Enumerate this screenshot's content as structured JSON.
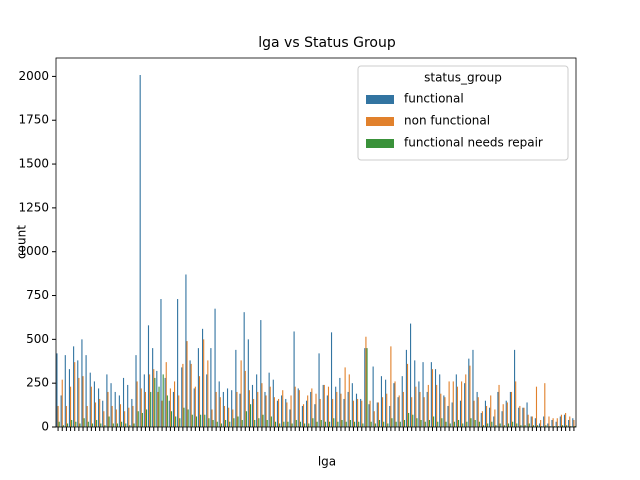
{
  "chart_data": {
    "type": "grouped_bar",
    "title": "lga vs Status Group",
    "xlabel": "lga",
    "ylabel": "count",
    "legend_title": "status_group",
    "legend": "upper right",
    "categories": [
      null,
      null,
      null,
      null,
      null,
      null,
      null,
      null,
      null,
      null,
      null,
      null,
      null,
      null,
      null,
      null,
      null,
      null,
      null,
      null,
      null,
      null,
      null,
      null,
      null,
      null,
      null,
      null,
      null,
      null,
      null,
      null,
      null,
      null,
      null,
      null,
      null,
      null,
      null,
      null,
      null,
      null,
      null,
      null,
      null,
      null,
      null,
      null,
      null,
      null,
      null,
      null,
      null,
      null,
      null,
      null,
      null,
      null,
      null,
      null,
      null,
      null,
      null,
      null,
      null,
      null,
      null,
      null,
      null,
      null,
      null,
      null,
      null,
      null,
      null,
      null,
      null,
      null,
      null,
      null,
      null,
      null,
      null,
      null,
      null,
      null,
      null,
      null,
      null,
      null,
      null,
      null,
      null,
      null,
      null,
      null,
      null,
      null,
      null,
      null,
      null,
      null,
      null,
      null,
      null,
      null,
      null,
      null,
      null,
      null,
      null,
      null,
      null,
      null,
      null,
      null,
      null,
      null,
      null,
      null,
      null,
      null,
      null,
      null,
      null
    ],
    "series": [
      {
        "name": "functional",
        "color": "#3274a1",
        "values": [
          420,
          180,
          410,
          330,
          460,
          380,
          500,
          410,
          310,
          260,
          220,
          150,
          300,
          250,
          200,
          180,
          280,
          240,
          160,
          410,
          2008,
          300,
          580,
          450,
          320,
          730,
          280,
          150,
          200,
          730,
          340,
          870,
          380,
          220,
          450,
          560,
          300,
          450,
          675,
          260,
          200,
          220,
          210,
          440,
          190,
          655,
          500,
          240,
          300,
          610,
          200,
          310,
          270,
          150,
          180,
          160,
          100,
          545,
          220,
          120,
          150,
          200,
          130,
          420,
          240,
          180,
          540,
          230,
          280,
          160,
          200,
          250,
          190,
          160,
          450,
          130,
          345,
          140,
          290,
          270,
          120,
          250,
          170,
          290,
          440,
          590,
          380,
          260,
          370,
          200,
          370,
          330,
          300,
          180,
          120,
          140,
          300,
          150,
          250,
          390,
          440,
          200,
          80,
          150,
          110,
          60,
          200,
          90,
          150,
          200,
          440,
          110,
          110,
          140,
          60,
          50,
          20,
          60,
          20,
          40,
          30,
          60,
          70,
          40,
          50
        ]
      },
      {
        "name": "non functional",
        "color": "#e1812c",
        "values": [
          120,
          270,
          120,
          230,
          370,
          280,
          290,
          120,
          230,
          140,
          160,
          90,
          200,
          120,
          100,
          130,
          90,
          110,
          120,
          260,
          220,
          200,
          300,
          330,
          200,
          150,
          370,
          220,
          260,
          180,
          360,
          490,
          360,
          230,
          290,
          500,
          380,
          100,
          200,
          170,
          120,
          110,
          100,
          200,
          380,
          320,
          210,
          160,
          200,
          250,
          180,
          230,
          170,
          160,
          210,
          140,
          180,
          230,
          210,
          130,
          180,
          220,
          190,
          160,
          240,
          230,
          160,
          200,
          190,
          340,
          300,
          150,
          160,
          150,
          515,
          150,
          90,
          140,
          170,
          190,
          460,
          260,
          180,
          200,
          360,
          170,
          230,
          200,
          170,
          240,
          330,
          240,
          190,
          170,
          260,
          260,
          230,
          260,
          300,
          350,
          150,
          170,
          90,
          120,
          180,
          100,
          240,
          130,
          140,
          200,
          260,
          120,
          110,
          70,
          60,
          230,
          40,
          250,
          60,
          50,
          50,
          70,
          80,
          60,
          40
        ]
      },
      {
        "name": "functional needs repair",
        "color": "#3a923a",
        "values": [
          30,
          10,
          20,
          40,
          30,
          20,
          50,
          30,
          20,
          40,
          20,
          10,
          60,
          20,
          20,
          30,
          20,
          10,
          20,
          90,
          80,
          100,
          200,
          280,
          230,
          300,
          180,
          90,
          60,
          50,
          110,
          100,
          70,
          60,
          70,
          70,
          50,
          40,
          30,
          20,
          40,
          30,
          50,
          60,
          40,
          90,
          130,
          40,
          50,
          70,
          40,
          60,
          30,
          20,
          30,
          30,
          20,
          40,
          30,
          20,
          20,
          50,
          30,
          40,
          30,
          30,
          50,
          30,
          40,
          30,
          40,
          30,
          30,
          20,
          450,
          30,
          20,
          40,
          30,
          20,
          50,
          30,
          30,
          40,
          80,
          70,
          50,
          40,
          30,
          40,
          60,
          30,
          50,
          30,
          20,
          30,
          40,
          20,
          30,
          50,
          40,
          30,
          10,
          20,
          30,
          10,
          20,
          10,
          20,
          30,
          20,
          10,
          10,
          20,
          10,
          10,
          5,
          10,
          5,
          5,
          5,
          10,
          10,
          5,
          5
        ]
      }
    ],
    "ylim": [
      0,
      2105
    ],
    "yticks": [
      0,
      250,
      500,
      750,
      1000,
      1250,
      1500,
      1750,
      2000
    ]
  }
}
